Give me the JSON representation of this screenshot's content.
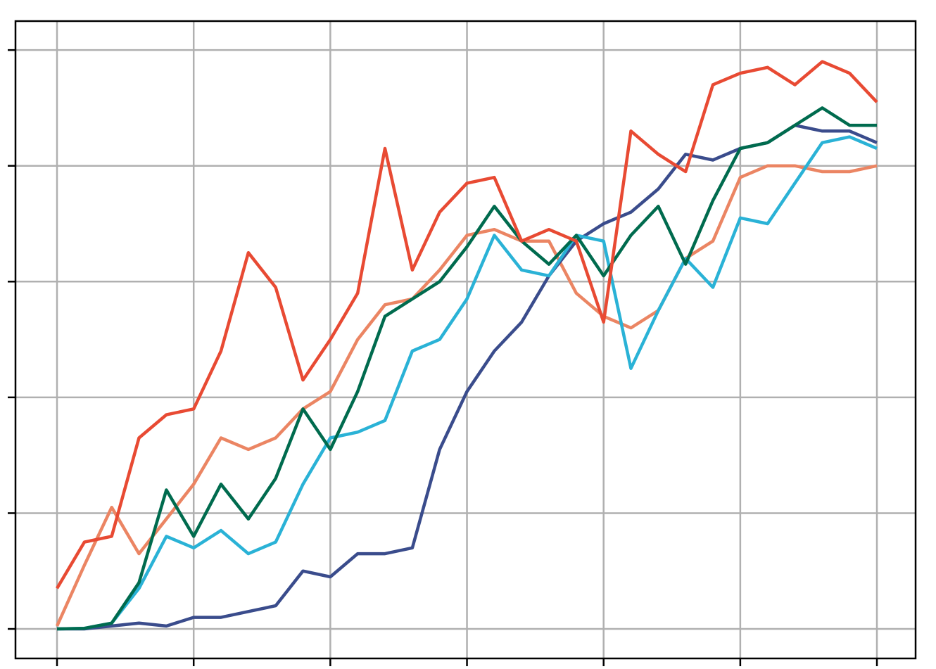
{
  "chart_data": {
    "type": "line",
    "x": [
      0,
      0.2,
      0.4,
      0.6,
      0.8,
      1,
      1.2,
      1.4,
      1.6,
      1.8,
      2,
      2.2,
      2.4,
      2.6,
      2.8,
      3,
      3.2,
      3.4,
      3.6,
      3.8,
      4,
      4.2,
      4.4,
      4.6,
      4.8,
      5,
      5.2,
      5.4,
      5.6,
      5.8,
      6
    ],
    "xlim": [
      -0.304,
      6.283
    ],
    "xticks": [
      0,
      1,
      2,
      3,
      4,
      5,
      6
    ],
    "ylim": [
      -0.051,
      1.05
    ],
    "yticks": [
      0,
      0.2,
      0.4,
      0.6,
      0.8,
      1
    ],
    "grid": true,
    "series": [
      {
        "color": "#eb8563",
        "values": [
          0.005,
          0.11,
          0.21,
          0.13,
          0.19,
          0.25,
          0.33,
          0.31,
          0.33,
          0.38,
          0.41,
          0.5,
          0.56,
          0.57,
          0.62,
          0.68,
          0.69,
          0.67,
          0.67,
          0.58,
          0.54,
          0.52,
          0.55,
          0.64,
          0.67,
          0.78,
          0.8,
          0.8,
          0.79,
          0.79,
          0.8
        ]
      },
      {
        "color": "#3a4c8c",
        "values": [
          0,
          0,
          0.005,
          0.01,
          0.005,
          0.02,
          0.02,
          0.03,
          0.04,
          0.1,
          0.09,
          0.13,
          0.13,
          0.14,
          0.31,
          0.41,
          0.48,
          0.53,
          0.61,
          0.67,
          0.7,
          0.72,
          0.76,
          0.82,
          0.81,
          0.83,
          0.84,
          0.87,
          0.86,
          0.86,
          0.84
        ]
      },
      {
        "color": "#2ab2d6",
        "values": [
          0,
          0.001,
          0.01,
          0.07,
          0.16,
          0.14,
          0.17,
          0.13,
          0.15,
          0.25,
          0.33,
          0.34,
          0.36,
          0.48,
          0.5,
          0.57,
          0.68,
          0.62,
          0.61,
          0.68,
          0.67,
          0.45,
          0.55,
          0.64,
          0.59,
          0.71,
          0.7,
          0.77,
          0.84,
          0.85,
          0.83
        ]
      },
      {
        "color": "#006b4e",
        "values": [
          0,
          0.001,
          0.01,
          0.08,
          0.24,
          0.16,
          0.25,
          0.19,
          0.26,
          0.38,
          0.31,
          0.41,
          0.54,
          0.57,
          0.6,
          0.66,
          0.73,
          0.67,
          0.63,
          0.68,
          0.61,
          0.68,
          0.73,
          0.63,
          0.74,
          0.83,
          0.84,
          0.87,
          0.9,
          0.87,
          0.87
        ]
      },
      {
        "color": "#e84a33",
        "values": [
          0.07,
          0.15,
          0.16,
          0.33,
          0.37,
          0.38,
          0.48,
          0.65,
          0.59,
          0.43,
          0.5,
          0.58,
          0.83,
          0.62,
          0.72,
          0.77,
          0.78,
          0.67,
          0.69,
          0.67,
          0.53,
          0.86,
          0.82,
          0.79,
          0.94,
          0.96,
          0.97,
          0.94,
          0.98,
          0.96,
          0.91
        ]
      }
    ]
  }
}
